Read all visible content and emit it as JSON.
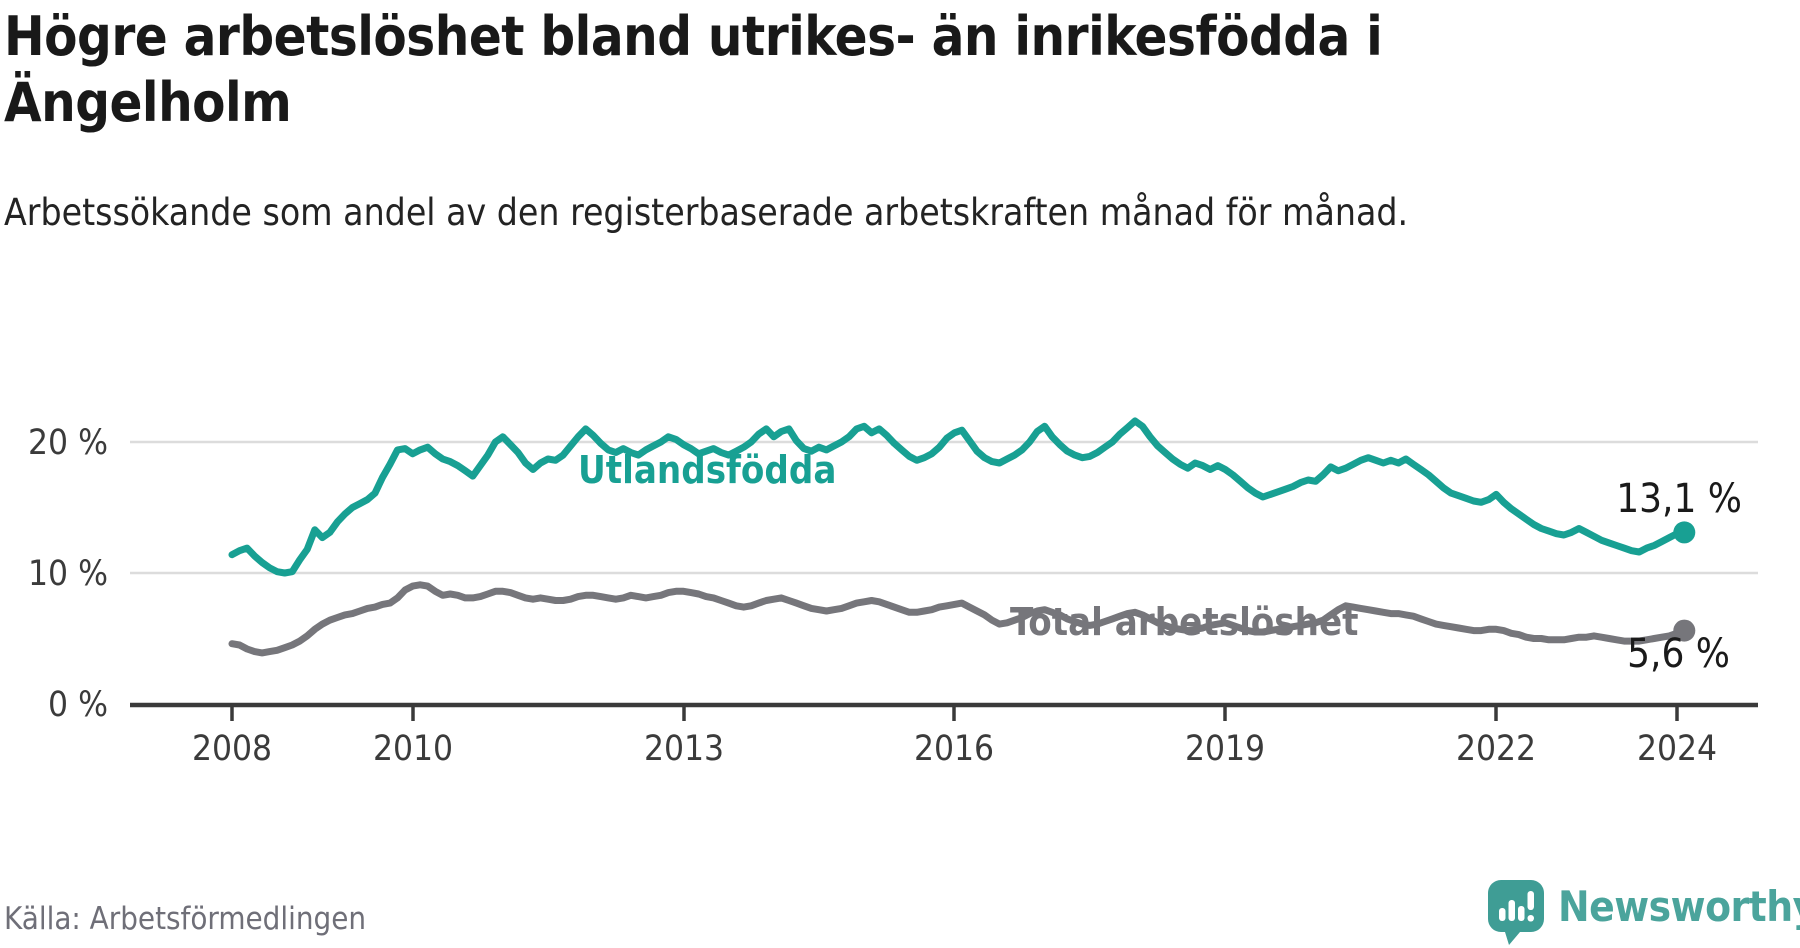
{
  "header": {
    "title": "Högre arbetslöshet bland utrikes- än inrikesfödda i Ängelholm",
    "subtitle": "Arbetssökande som andel av den registerbaserade arbetskraften månad för månad."
  },
  "footer": {
    "source": "Källa: Arbetsförmedlingen",
    "brand": "Newsworthy"
  },
  "chart_data": {
    "type": "line",
    "title": "Högre arbetslöshet bland utrikes- än inrikesfödda i Ängelholm",
    "x_unit": "year (monthly data)",
    "y_unit": "%",
    "grid": "horizontal only",
    "axis_range_x": [
      2006.9,
      2024.9
    ],
    "ylim": [
      0,
      23
    ],
    "x_ticks": [
      "2008",
      "2010",
      "2013",
      "2016",
      "2019",
      "2022",
      "2024"
    ],
    "y_ticks": [
      {
        "value": 0,
        "label": "0 %"
      },
      {
        "value": 10,
        "label": "10 %"
      },
      {
        "value": 20,
        "label": "20 %"
      }
    ],
    "colors": {
      "grid": "#DCDCDC",
      "axis": "#3A3A3A",
      "tick_text": "#3B3B3B",
      "value_text": "#1A1A1A"
    },
    "series": [
      {
        "id": "utlandsfodda",
        "name": "Utlandsfödda",
        "color": "#18A093",
        "start_year": 2008,
        "interval_months": 1,
        "end_value": 13.1,
        "end_label": "13,1 %",
        "values": [
          11.4,
          11.7,
          11.9,
          11.3,
          10.8,
          10.4,
          10.1,
          10.0,
          10.1,
          11.0,
          11.8,
          13.3,
          12.7,
          13.1,
          13.9,
          14.5,
          15.0,
          15.3,
          15.6,
          16.1,
          17.3,
          18.3,
          19.4,
          19.5,
          19.1,
          19.4,
          19.6,
          19.1,
          18.7,
          18.5,
          18.2,
          17.8,
          17.4,
          18.2,
          19.0,
          20.0,
          20.4,
          19.8,
          19.2,
          18.4,
          17.9,
          18.4,
          18.7,
          18.6,
          19.0,
          19.7,
          20.4,
          21.0,
          20.5,
          19.9,
          19.4,
          19.2,
          19.5,
          19.2,
          19.0,
          19.4,
          19.7,
          20.0,
          20.4,
          20.2,
          19.8,
          19.5,
          19.1,
          19.3,
          19.5,
          19.2,
          19.0,
          19.3,
          19.6,
          20.0,
          20.6,
          21.0,
          20.4,
          20.8,
          21.0,
          20.1,
          19.5,
          19.3,
          19.6,
          19.4,
          19.7,
          20.0,
          20.4,
          21.0,
          21.2,
          20.7,
          21.0,
          20.5,
          19.9,
          19.4,
          18.9,
          18.6,
          18.8,
          19.1,
          19.6,
          20.3,
          20.7,
          20.9,
          20.1,
          19.3,
          18.8,
          18.5,
          18.4,
          18.7,
          19.0,
          19.4,
          20.0,
          20.8,
          21.2,
          20.4,
          19.8,
          19.3,
          19.0,
          18.8,
          18.9,
          19.2,
          19.6,
          20.0,
          20.6,
          21.1,
          21.6,
          21.2,
          20.4,
          19.7,
          19.2,
          18.7,
          18.3,
          18.0,
          18.4,
          18.2,
          17.9,
          18.2,
          17.9,
          17.5,
          17.0,
          16.5,
          16.1,
          15.8,
          16.0,
          16.2,
          16.4,
          16.6,
          16.9,
          17.1,
          17.0,
          17.5,
          18.1,
          17.8,
          18.0,
          18.3,
          18.6,
          18.8,
          18.6,
          18.4,
          18.6,
          18.4,
          18.7,
          18.3,
          17.9,
          17.5,
          17.0,
          16.5,
          16.1,
          15.9,
          15.7,
          15.5,
          15.4,
          15.6,
          16.0,
          15.4,
          14.9,
          14.5,
          14.1,
          13.7,
          13.4,
          13.2,
          13.0,
          12.9,
          13.1,
          13.4,
          13.1,
          12.8,
          12.5,
          12.3,
          12.1,
          11.9,
          11.7,
          11.6,
          11.9,
          12.1,
          12.4,
          12.7,
          13.0,
          13.1
        ]
      },
      {
        "id": "total",
        "name": "Total arbetslöshet",
        "color": "#76767B",
        "start_year": 2008,
        "interval_months": 1,
        "end_value": 5.6,
        "end_label": "5,6 %",
        "values": [
          4.6,
          4.5,
          4.2,
          4.0,
          3.9,
          4.0,
          4.1,
          4.3,
          4.5,
          4.8,
          5.2,
          5.7,
          6.1,
          6.4,
          6.6,
          6.8,
          6.9,
          7.1,
          7.3,
          7.4,
          7.6,
          7.7,
          8.1,
          8.7,
          9.0,
          9.1,
          9.0,
          8.6,
          8.3,
          8.4,
          8.3,
          8.1,
          8.1,
          8.2,
          8.4,
          8.6,
          8.6,
          8.5,
          8.3,
          8.1,
          8.0,
          8.1,
          8.0,
          7.9,
          7.9,
          8.0,
          8.2,
          8.3,
          8.3,
          8.2,
          8.1,
          8.0,
          8.1,
          8.3,
          8.2,
          8.1,
          8.2,
          8.3,
          8.5,
          8.6,
          8.6,
          8.5,
          8.4,
          8.2,
          8.1,
          7.9,
          7.7,
          7.5,
          7.4,
          7.5,
          7.7,
          7.9,
          8.0,
          8.1,
          7.9,
          7.7,
          7.5,
          7.3,
          7.2,
          7.1,
          7.2,
          7.3,
          7.5,
          7.7,
          7.8,
          7.9,
          7.8,
          7.6,
          7.4,
          7.2,
          7.0,
          7.0,
          7.1,
          7.2,
          7.4,
          7.5,
          7.6,
          7.7,
          7.4,
          7.1,
          6.8,
          6.4,
          6.1,
          6.2,
          6.4,
          6.6,
          6.9,
          7.1,
          7.2,
          7.0,
          6.8,
          6.5,
          6.3,
          6.1,
          6.0,
          6.1,
          6.3,
          6.5,
          6.7,
          6.9,
          7.0,
          6.8,
          6.5,
          6.2,
          6.0,
          5.8,
          5.7,
          5.6,
          5.7,
          5.8,
          6.0,
          6.1,
          6.2,
          6.0,
          5.8,
          5.6,
          5.5,
          5.5,
          5.6,
          5.7,
          5.8,
          5.9,
          6.0,
          6.1,
          6.2,
          6.4,
          6.8,
          7.2,
          7.5,
          7.4,
          7.3,
          7.2,
          7.1,
          7.0,
          6.9,
          6.9,
          6.8,
          6.7,
          6.5,
          6.3,
          6.1,
          6.0,
          5.9,
          5.8,
          5.7,
          5.6,
          5.6,
          5.7,
          5.7,
          5.6,
          5.4,
          5.3,
          5.1,
          5.0,
          5.0,
          4.9,
          4.9,
          4.9,
          5.0,
          5.1,
          5.1,
          5.2,
          5.1,
          5.0,
          4.9,
          4.8,
          4.8,
          4.8,
          4.9,
          5.0,
          5.1,
          5.2,
          5.4,
          5.6
        ]
      }
    ]
  },
  "logo": {
    "icon": "speech-bubble-bar-chart",
    "color": "#3F9D95"
  }
}
